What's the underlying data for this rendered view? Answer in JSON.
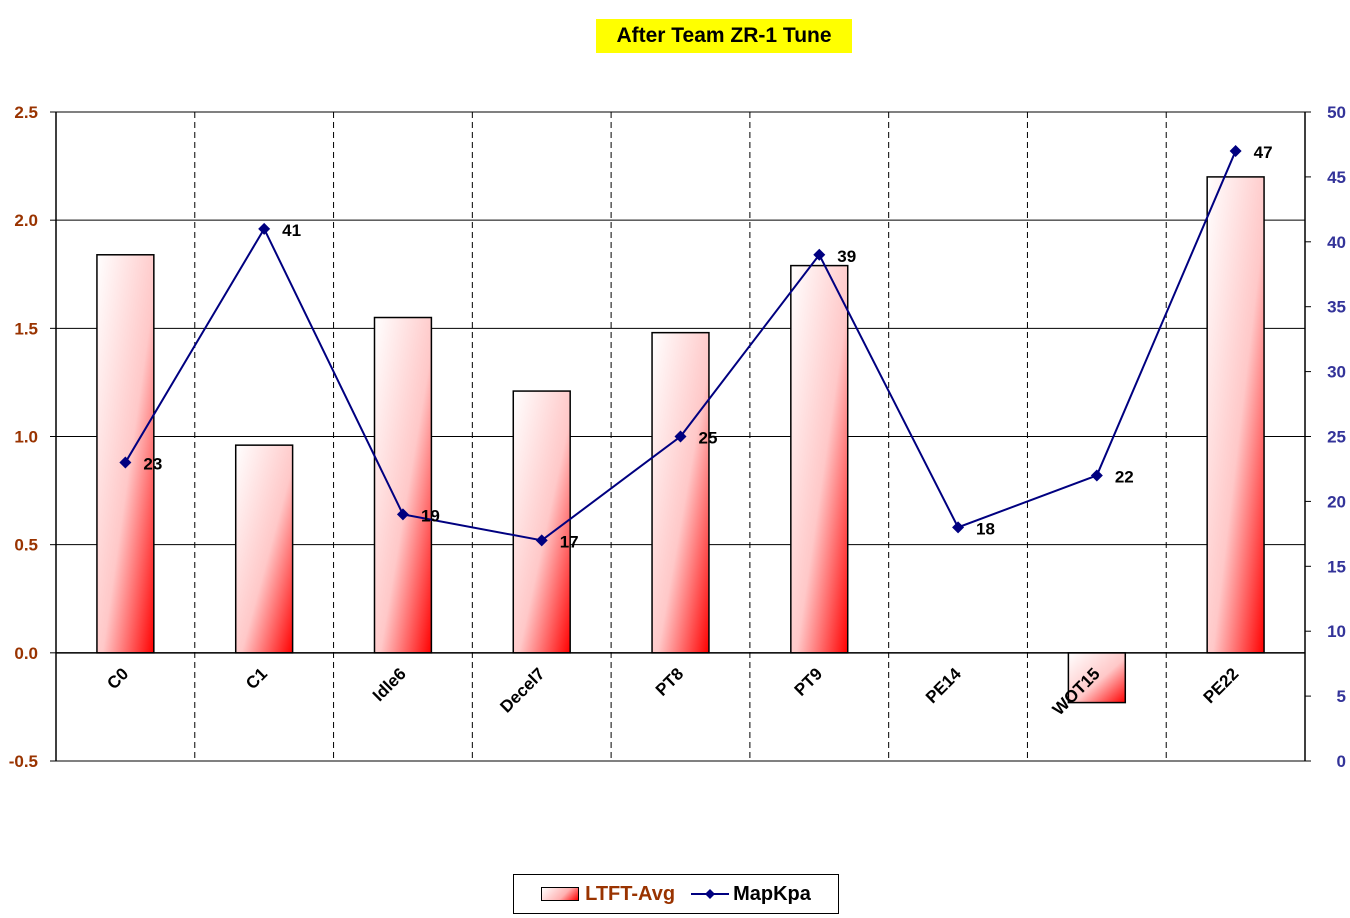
{
  "chart_data": {
    "type": "bar+line",
    "title": "After Team ZR-1 Tune",
    "categories": [
      "C0",
      "C1",
      "Idle6",
      "Decel7",
      "PT8",
      "PT9",
      "PE14",
      "WOT15",
      "PE22"
    ],
    "series": [
      {
        "name": "LTFT-Avg",
        "type": "bar",
        "axis": "left",
        "values": [
          1.84,
          0.96,
          1.55,
          1.21,
          1.48,
          1.79,
          0.0,
          -0.23,
          2.2
        ]
      },
      {
        "name": "MapKpa",
        "type": "line",
        "axis": "right",
        "values": [
          23,
          41,
          19,
          17,
          25,
          39,
          18,
          22,
          47
        ],
        "labels": [
          "23",
          "41",
          "19",
          "17",
          "25",
          "39",
          "18",
          "22",
          "47"
        ]
      }
    ],
    "y_left": {
      "ylim": [
        -0.5,
        2.5
      ],
      "ticks": [
        "-0.5",
        "0.0",
        "0.5",
        "1.0",
        "1.5",
        "2.0",
        "2.5"
      ],
      "tick_values": [
        -0.5,
        0.0,
        0.5,
        1.0,
        1.5,
        2.0,
        2.5
      ],
      "color": "#993300"
    },
    "y_right": {
      "ylim": [
        0,
        50
      ],
      "ticks": [
        "0",
        "5",
        "10",
        "15",
        "20",
        "25",
        "30",
        "35",
        "40",
        "45",
        "50"
      ],
      "tick_values": [
        0,
        5,
        10,
        15,
        20,
        25,
        30,
        35,
        40,
        45,
        50
      ],
      "color": "#333399"
    },
    "grid": "horizontal major + vertical dashed",
    "legend_position": "bottom",
    "colors": {
      "bar_light": "#ffffff",
      "bar_dark": "#ff0000",
      "line": "#000080",
      "title_bg": "#ffff00",
      "legend_bar_text": "#993300"
    }
  },
  "legend": {
    "bar_label": "LTFT-Avg",
    "line_label": "MapKpa"
  }
}
